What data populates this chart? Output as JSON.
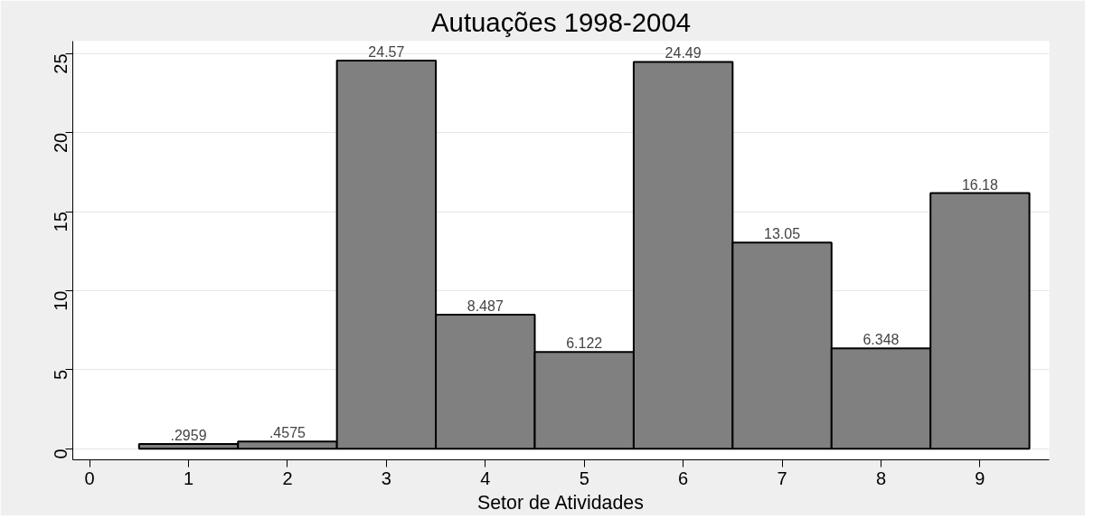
{
  "chart_data": {
    "type": "histogram",
    "title": "Autuações 1998-2004",
    "xlabel": "Setor de Atividades",
    "bins": [
      0.5,
      1.5,
      2.5,
      3.5,
      4.5,
      5.5,
      6.5,
      7.5,
      8.5,
      9.5
    ],
    "values": [
      0.2959,
      0.4575,
      24.57,
      8.487,
      6.122,
      24.49,
      13.05,
      6.348,
      16.18
    ],
    "value_labels": [
      ".2959",
      ".4575",
      "24.57",
      "8.487",
      "6.122",
      "24.49",
      "13.05",
      "6.348",
      "16.18"
    ],
    "color": "#808080",
    "xlim": [
      -0.17,
      9.7
    ],
    "xticks": [
      0,
      1,
      2,
      3,
      4,
      5,
      6,
      7,
      8,
      9
    ],
    "ylim": [
      -0.7,
      25.8
    ],
    "yticks": [
      0,
      5,
      10,
      15,
      20,
      25
    ],
    "grid": "y"
  }
}
